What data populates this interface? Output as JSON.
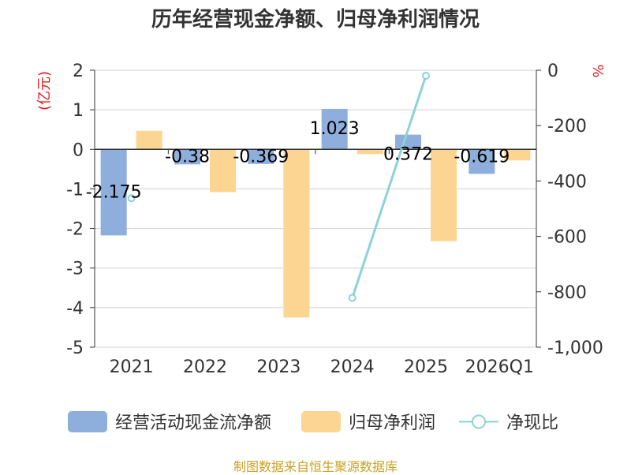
{
  "chart_data": {
    "type": "bar",
    "title": "历年经营现金净额、归母净利润情况",
    "categories": [
      "2021",
      "2022",
      "2023",
      "2024",
      "2025",
      "2026Q1"
    ],
    "y_left": {
      "label": "(亿元)",
      "min": -5,
      "max": 2,
      "ticks": [
        "2",
        "1",
        "0",
        "-1",
        "-2",
        "-3",
        "-4",
        "-5"
      ]
    },
    "y_right": {
      "label": "%",
      "min": -1000,
      "max": 0,
      "ticks": [
        "0",
        "-200",
        "-400",
        "-600",
        "-800",
        "-1,000"
      ]
    },
    "series": [
      {
        "name": "经营活动现金流净额",
        "type": "bar",
        "axis": "left",
        "color": "#8eaedc",
        "values": [
          -2.175,
          -0.38,
          -0.369,
          1.023,
          0.372,
          -0.619
        ],
        "labels": [
          "-2.175",
          "-0.38",
          "-0.369",
          "1.023",
          "0.372",
          "-0.619"
        ]
      },
      {
        "name": "归母净利润",
        "type": "bar",
        "axis": "left",
        "color": "#fdd593",
        "values": [
          0.47,
          -1.08,
          -4.25,
          -0.12,
          -2.32,
          -0.28
        ]
      },
      {
        "name": "净现比",
        "type": "line",
        "axis": "right",
        "color": "#8dd2d9",
        "values": [
          -462,
          null,
          null,
          -822,
          -20,
          null
        ]
      }
    ],
    "grid": true,
    "legend_position": "bottom"
  },
  "legend": {
    "cash_flow": "经营活动现金流净额",
    "net_profit": "归母净利润",
    "ratio": "净现比"
  },
  "footer": {
    "source": "制图数据来自恒生聚源数据库"
  }
}
